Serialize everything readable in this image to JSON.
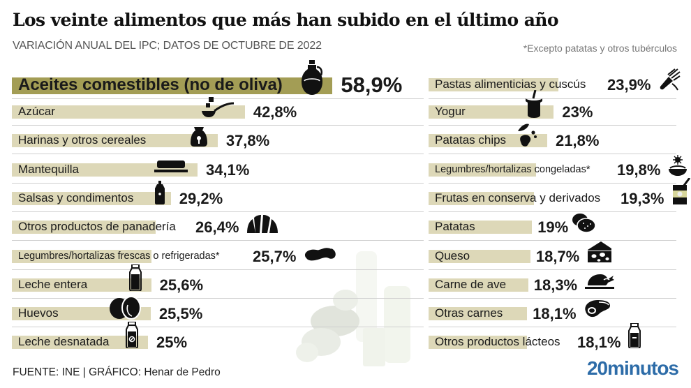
{
  "header": {
    "title": "Los veinte alimentos que más han subido en el último año",
    "subtitle": "VARIACIÓN ANUAL DEL IPC; DATOS DE OCTUBRE DE 2022",
    "note": "*Excepto patatas y otros tubérculos"
  },
  "footer": {
    "source": "FUENTE: INE | GRÁFICO: Henar de Pedro",
    "brand": "20minutos"
  },
  "colors": {
    "highlight_bar": "#a39d55",
    "bar": "#ddd8b8",
    "brand": "#2d6ca8"
  },
  "chart_data": {
    "type": "bar",
    "orientation": "horizontal",
    "title": "Los veinte alimentos que más han subido en el último año",
    "subtitle": "VARIACIÓN ANUAL DEL IPC; DATOS DE OCTUBRE DE 2022",
    "unit": "%",
    "xlabel": "",
    "ylabel": "",
    "xlim": [
      0,
      60
    ],
    "grid": false,
    "legend": "none",
    "categories": [
      "Aceites comestibles (no de oliva)",
      "Azúcar",
      "Harinas y otros cereales",
      "Mantequilla",
      "Salsas y condimentos",
      "Otros productos de panadería",
      "Legumbres/hortalizas frescas o refrigeradas*",
      "Leche entera",
      "Huevos",
      "Leche desnatada",
      "Pastas alimenticias y cuscús",
      "Yogur",
      "Patatas chips",
      "Legumbres/hortalizas congeladas*",
      "Frutas en conserva y derivados",
      "Patatas",
      "Queso",
      "Carne de ave",
      "Otras carnes",
      "Otros productos lácteos"
    ],
    "values": [
      58.9,
      42.8,
      37.8,
      34.1,
      29.2,
      26.4,
      25.7,
      25.6,
      25.5,
      25.0,
      23.9,
      23.0,
      21.8,
      19.8,
      19.3,
      19.0,
      18.7,
      18.3,
      18.1,
      18.1
    ],
    "value_labels": [
      "58,9%",
      "42,8%",
      "37,8%",
      "34,1%",
      "29,2%",
      "26,4%",
      "25,7%",
      "25,6%",
      "25,5%",
      "25%",
      "23,9%",
      "23%",
      "21,8%",
      "19,8%",
      "19,3%",
      "19%",
      "18,7%",
      "18,3%",
      "18,1%",
      "18,1%"
    ],
    "icons": [
      "oil-jug-icon",
      "sugar-spoon-icon",
      "flour-sack-icon",
      "butter-dish-icon",
      "sauce-bottle-icon",
      "croissant-icon",
      "bean-icon",
      "whole-milk-bottle-icon",
      "eggs-icon",
      "skim-milk-bottle-icon",
      "pasta-icon",
      "yogurt-icon",
      "potato-chips-icon",
      "frozen-vegetables-icon",
      "canned-fruit-icon",
      "potatoes-icon",
      "cheese-icon",
      "roast-chicken-icon",
      "steak-icon",
      "dairy-bottle-icon"
    ],
    "annotation": "*Excepto patatas y otros tubérculos"
  }
}
